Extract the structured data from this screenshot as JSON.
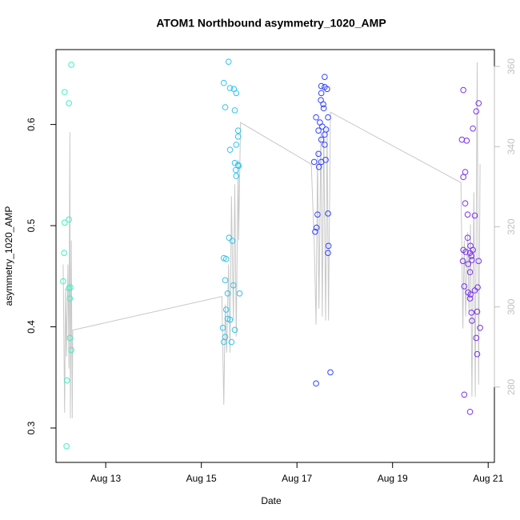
{
  "chart_data": {
    "type": "scatter",
    "title": "ATOM1 Northbound asymmetry_1020_AMP",
    "x_label": "Date",
    "y_label": "asymmetry_1020_AMP",
    "xlim": [
      11.96,
      21.13
    ],
    "ylim": [
      0.266,
      0.674
    ],
    "y2lim": [
      261.2,
      364.2
    ],
    "xticks": [
      {
        "value": 13,
        "label": "Aug 13"
      },
      {
        "value": 15,
        "label": "Aug 15"
      },
      {
        "value": 17,
        "label": "Aug 17"
      },
      {
        "value": 19,
        "label": "Aug 19"
      },
      {
        "value": 21,
        "label": "Aug 21"
      }
    ],
    "yticks": [
      0.3,
      0.4,
      0.5,
      0.6
    ],
    "y2ticks": [
      280,
      300,
      320,
      340,
      360
    ],
    "series": [
      {
        "type": "line",
        "axis": "y2",
        "color": "#c8c8c8",
        "x": [
          12.11,
          12.14,
          12.16,
          12.18,
          12.19,
          12.21,
          12.23,
          12.25,
          12.26,
          12.28,
          12.3,
          12.31,
          15.43,
          15.47,
          15.5,
          15.53,
          15.57,
          15.6,
          15.63,
          15.67,
          15.7,
          15.73,
          15.77,
          15.78,
          15.82,
          17.3,
          17.36,
          17.4,
          17.43,
          17.46,
          17.5,
          17.53,
          17.56,
          17.6,
          17.63,
          17.66,
          17.7,
          20.43,
          20.47,
          20.5,
          20.53,
          20.57,
          20.6,
          20.63,
          20.66,
          20.7,
          20.73,
          20.77,
          20.8,
          20.83
        ],
        "values": [
          310.6,
          273.6,
          304.6,
          287.6,
          296.6,
          310.6,
          284.6,
          343.6,
          272.2,
          316.6,
          272.2,
          294.2,
          302.6,
          275.6,
          300.6,
          288.6,
          310.6,
          288.6,
          327.6,
          296.6,
          330.6,
          292.6,
          336.6,
          316.6,
          346.0,
          335.6,
          316.6,
          295.6,
          338.6,
          299.6,
          343.6,
          297.6,
          344.6,
          296.6,
          344.6,
          296.6,
          348.6,
          331.0,
          294.6,
          316.6,
          297.6,
          318.6,
          298.6,
          320.6,
          277.6,
          328.6,
          277.6,
          361.0,
          280.6,
          335.6
        ]
      },
      {
        "type": "scatter",
        "color": "#3cf0c0",
        "x": [
          12.14,
          12.23,
          12.28,
          12.14,
          12.23,
          12.13,
          12.11,
          12.23,
          12.26,
          12.25,
          12.25,
          12.28,
          12.19,
          12.18
        ],
        "values": [
          0.632,
          0.621,
          0.659,
          0.503,
          0.506,
          0.473,
          0.445,
          0.438,
          0.439,
          0.428,
          0.389,
          0.377,
          0.347,
          0.282
        ]
      },
      {
        "type": "scatter",
        "color": "#30c4ee",
        "x": [
          15.57,
          15.47,
          15.6,
          15.68,
          15.73,
          15.5,
          15.7,
          15.77,
          15.77,
          15.73,
          15.6,
          15.7,
          15.77,
          15.78,
          15.72,
          15.73,
          15.58,
          15.65,
          15.47,
          15.52,
          15.5,
          15.67,
          15.55,
          15.8,
          15.52,
          15.55,
          15.6,
          15.45,
          15.7,
          15.5,
          15.47,
          15.63
        ],
        "values": [
          0.662,
          0.641,
          0.636,
          0.635,
          0.631,
          0.617,
          0.614,
          0.594,
          0.588,
          0.58,
          0.575,
          0.562,
          0.56,
          0.559,
          0.555,
          0.549,
          0.488,
          0.485,
          0.468,
          0.467,
          0.446,
          0.441,
          0.433,
          0.433,
          0.417,
          0.408,
          0.407,
          0.399,
          0.397,
          0.39,
          0.385,
          0.385
        ]
      },
      {
        "type": "scatter",
        "color": "#3344ff",
        "x": [
          17.58,
          17.51,
          17.58,
          17.63,
          17.51,
          17.5,
          17.55,
          17.56,
          17.4,
          17.65,
          17.48,
          17.53,
          17.45,
          17.61,
          17.58,
          17.51,
          17.58,
          17.45,
          17.36,
          17.51,
          17.6,
          17.46,
          17.43,
          17.65,
          17.41,
          17.38,
          17.66,
          17.65,
          17.7,
          17.4
        ],
        "values": [
          0.647,
          0.638,
          0.637,
          0.635,
          0.631,
          0.624,
          0.62,
          0.616,
          0.607,
          0.607,
          0.602,
          0.598,
          0.594,
          0.595,
          0.59,
          0.585,
          0.58,
          0.571,
          0.563,
          0.563,
          0.565,
          0.558,
          0.511,
          0.512,
          0.498,
          0.494,
          0.48,
          0.473,
          0.355,
          0.344
        ]
      },
      {
        "type": "scatter",
        "color": "#7a33ee",
        "x": [
          20.48,
          20.45,
          20.55,
          20.75,
          20.8,
          20.52,
          20.48,
          20.68,
          20.52,
          20.57,
          20.72,
          20.57,
          20.63,
          20.48,
          20.68,
          20.62,
          20.53,
          20.65,
          20.66,
          20.47,
          20.8,
          20.58,
          20.62,
          20.5,
          20.78,
          20.72,
          20.58,
          20.63,
          20.62,
          20.65,
          20.77,
          20.66,
          20.83,
          20.75,
          20.77,
          20.5,
          20.62
        ],
        "values": [
          0.634,
          0.585,
          0.584,
          0.613,
          0.621,
          0.553,
          0.548,
          0.596,
          0.522,
          0.511,
          0.51,
          0.488,
          0.48,
          0.476,
          0.476,
          0.473,
          0.474,
          0.47,
          0.466,
          0.465,
          0.465,
          0.462,
          0.454,
          0.44,
          0.439,
          0.436,
          0.434,
          0.432,
          0.428,
          0.414,
          0.415,
          0.406,
          0.399,
          0.389,
          0.373,
          0.333,
          0.316
        ]
      }
    ]
  }
}
